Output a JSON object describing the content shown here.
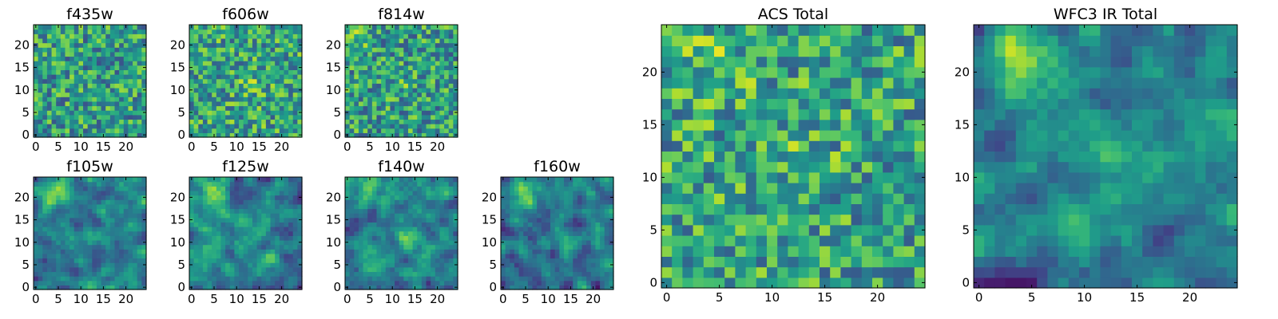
{
  "chart_data": [
    {
      "type": "heatmap",
      "title": "f435w",
      "xticks": [
        "0",
        "5",
        "10",
        "15",
        "20"
      ],
      "yticks": [
        "0",
        "5",
        "10",
        "15",
        "20"
      ],
      "xlim": [
        0,
        25
      ],
      "ylim": [
        0,
        25
      ],
      "grid": false,
      "legend": "none",
      "colormap": "viridis",
      "pixels": 25,
      "values": []
    },
    {
      "type": "heatmap",
      "title": "f606w",
      "xticks": [
        "0",
        "5",
        "10",
        "15",
        "20"
      ],
      "yticks": [
        "0",
        "5",
        "10",
        "15",
        "20"
      ],
      "xlim": [
        0,
        25
      ],
      "ylim": [
        0,
        25
      ],
      "grid": false,
      "legend": "none",
      "colormap": "viridis",
      "pixels": 25,
      "values": []
    },
    {
      "type": "heatmap",
      "title": "f814w",
      "xticks": [
        "0",
        "5",
        "10",
        "15",
        "20"
      ],
      "yticks": [
        "0",
        "5",
        "10",
        "15",
        "20"
      ],
      "xlim": [
        0,
        25
      ],
      "ylim": [
        0,
        25
      ],
      "grid": false,
      "legend": "none",
      "colormap": "viridis",
      "pixels": 25,
      "values": []
    },
    {
      "type": "heatmap",
      "title": "f105w",
      "xticks": [
        "0",
        "5",
        "10",
        "15",
        "20"
      ],
      "yticks": [
        "0",
        "5",
        "10",
        "15",
        "20"
      ],
      "xlim": [
        0,
        25
      ],
      "ylim": [
        0,
        25
      ],
      "grid": false,
      "legend": "none",
      "colormap": "viridis",
      "pixels": 25,
      "values": []
    },
    {
      "type": "heatmap",
      "title": "f125w",
      "xticks": [
        "0",
        "5",
        "10",
        "15",
        "20"
      ],
      "yticks": [
        "0",
        "5",
        "10",
        "15",
        "20"
      ],
      "xlim": [
        0,
        25
      ],
      "ylim": [
        0,
        25
      ],
      "grid": false,
      "legend": "none",
      "colormap": "viridis",
      "pixels": 25,
      "values": []
    },
    {
      "type": "heatmap",
      "title": "f140w",
      "xticks": [
        "0",
        "5",
        "10",
        "15",
        "20"
      ],
      "yticks": [
        "0",
        "5",
        "10",
        "15",
        "20"
      ],
      "xlim": [
        0,
        25
      ],
      "ylim": [
        0,
        25
      ],
      "grid": false,
      "legend": "none",
      "colormap": "viridis",
      "pixels": 25,
      "values": []
    },
    {
      "type": "heatmap",
      "title": "f160w",
      "xticks": [
        "0",
        "5",
        "10",
        "15",
        "20"
      ],
      "yticks": [
        "0",
        "5",
        "10",
        "15",
        "20"
      ],
      "xlim": [
        0,
        25
      ],
      "ylim": [
        0,
        25
      ],
      "grid": false,
      "legend": "none",
      "colormap": "viridis",
      "pixels": 25,
      "values": []
    },
    {
      "type": "heatmap",
      "title": "ACS Total",
      "xticks": [
        "0",
        "5",
        "10",
        "15",
        "20"
      ],
      "yticks": [
        "0",
        "5",
        "10",
        "15",
        "20"
      ],
      "xlim": [
        0,
        25
      ],
      "ylim": [
        0,
        25
      ],
      "grid": false,
      "legend": "none",
      "colormap": "viridis",
      "pixels": 25,
      "values": []
    },
    {
      "type": "heatmap",
      "title": "WFC3 IR Total",
      "xticks": [
        "0",
        "5",
        "10",
        "15",
        "20"
      ],
      "yticks": [
        "0",
        "5",
        "10",
        "15",
        "20"
      ],
      "xlim": [
        0,
        25
      ],
      "ylim": [
        0,
        25
      ],
      "grid": false,
      "legend": "none",
      "colormap": "viridis",
      "pixels": 25,
      "values": []
    }
  ]
}
